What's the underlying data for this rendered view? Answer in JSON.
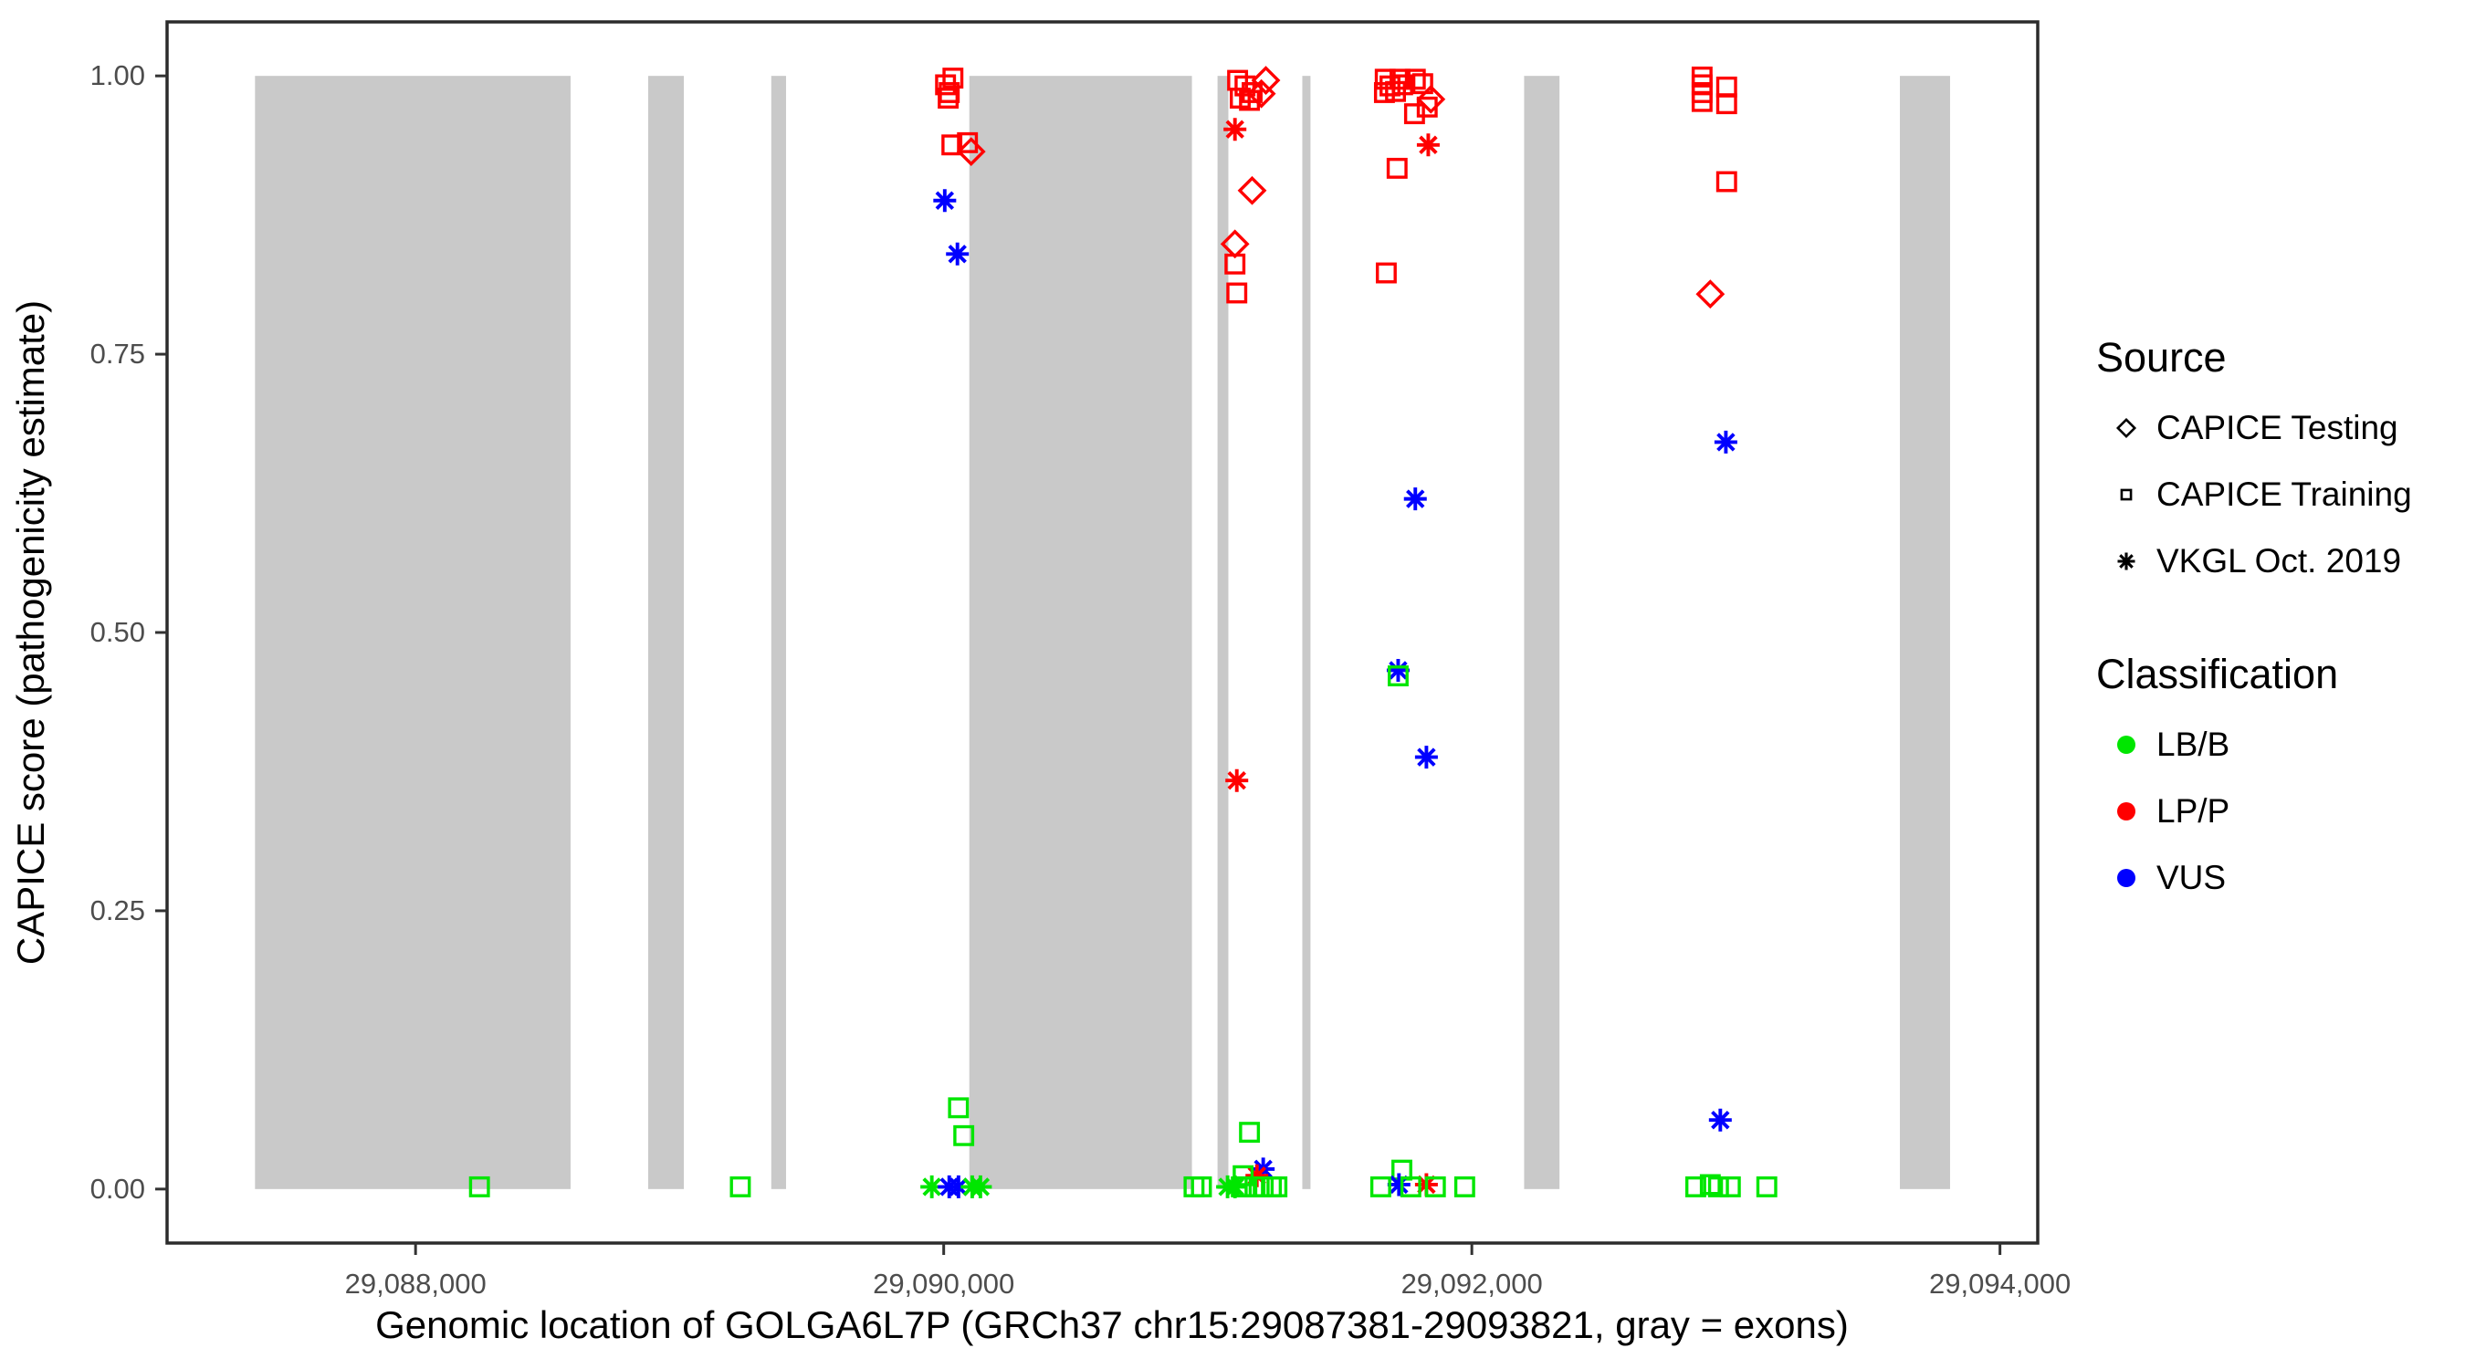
{
  "chart_data": {
    "type": "scatter",
    "title": "",
    "xlabel": "Genomic location of GOLGA6L7P (GRCh37 chr15:29087381-29093821, gray = exons)",
    "ylabel": "CAPICE score (pathogenicity estimate)",
    "xlim": [
      29087059,
      29094143
    ],
    "ylim": [
      -0.0485,
      1.0485
    ],
    "grid": false,
    "x_ticks": [
      {
        "value": 29088000,
        "label": "29,088,000"
      },
      {
        "value": 29090000,
        "label": "29,090,000"
      },
      {
        "value": 29092000,
        "label": "29,092,000"
      },
      {
        "value": 29094000,
        "label": "29,094,000"
      }
    ],
    "y_ticks": [
      {
        "value": 0.0,
        "label": "0.00"
      },
      {
        "value": 0.25,
        "label": "0.25"
      },
      {
        "value": 0.5,
        "label": "0.50"
      },
      {
        "value": 0.75,
        "label": "0.75"
      },
      {
        "value": 1.0,
        "label": "1.00"
      }
    ],
    "exons_bp": [
      [
        29087392,
        29088587
      ],
      [
        29088881,
        29089016
      ],
      [
        29089347,
        29089403
      ],
      [
        29090097,
        29090940
      ],
      [
        29091037,
        29091078
      ],
      [
        29091358,
        29091389
      ],
      [
        29092198,
        29092332
      ],
      [
        29093621,
        29093811
      ]
    ],
    "point_schema": [
      "bp",
      "score",
      "source",
      "classification"
    ],
    "points": [
      [
        29088242,
        0.002,
        "training",
        "LB/B"
      ],
      [
        29089230,
        0.002,
        "training",
        "LB/B"
      ],
      [
        29090035,
        0.998,
        "training",
        "LP/P"
      ],
      [
        29090007,
        0.992,
        "training",
        "LP/P"
      ],
      [
        29090021,
        0.985,
        "training",
        "LP/P"
      ],
      [
        29090017,
        0.98,
        "training",
        "LP/P"
      ],
      [
        29090031,
        0.938,
        "training",
        "LP/P"
      ],
      [
        29090090,
        0.94,
        "training",
        "LP/P"
      ],
      [
        29090104,
        0.932,
        "testing",
        "LP/P"
      ],
      [
        29090004,
        0.888,
        "vkgl",
        "VUS"
      ],
      [
        29090052,
        0.84,
        "vkgl",
        "VUS"
      ],
      [
        29090056,
        0.073,
        "training",
        "LB/B"
      ],
      [
        29090076,
        0.048,
        "training",
        "LB/B"
      ],
      [
        29089955,
        0.002,
        "vkgl",
        "LB/B"
      ],
      [
        29090021,
        0.002,
        "vkgl",
        "VUS"
      ],
      [
        29090056,
        0.002,
        "vkgl",
        "VUS"
      ],
      [
        29090108,
        0.002,
        "vkgl",
        "LB/B"
      ],
      [
        29090139,
        0.002,
        "vkgl",
        "LB/B"
      ],
      [
        29091113,
        0.996,
        "training",
        "LP/P"
      ],
      [
        29091141,
        0.991,
        "training",
        "LP/P"
      ],
      [
        29091168,
        0.985,
        "training",
        "LP/P"
      ],
      [
        29091123,
        0.98,
        "training",
        "LP/P"
      ],
      [
        29091158,
        0.978,
        "training",
        "LP/P"
      ],
      [
        29091220,
        0.996,
        "testing",
        "LP/P"
      ],
      [
        29091203,
        0.984,
        "testing",
        "LP/P"
      ],
      [
        29091103,
        0.952,
        "vkgl",
        "LP/P"
      ],
      [
        29091168,
        0.897,
        "testing",
        "LP/P"
      ],
      [
        29091103,
        0.849,
        "testing",
        "LP/P"
      ],
      [
        29091103,
        0.831,
        "training",
        "LP/P"
      ],
      [
        29091110,
        0.805,
        "training",
        "LP/P"
      ],
      [
        29091110,
        0.367,
        "vkgl",
        "LP/P"
      ],
      [
        29091158,
        0.051,
        "training",
        "LB/B"
      ],
      [
        29091210,
        0.018,
        "vkgl",
        "VUS"
      ],
      [
        29091186,
        0.012,
        "vkgl",
        "LP/P"
      ],
      [
        29091134,
        0.012,
        "training",
        "LB/B"
      ],
      [
        29090948,
        0.002,
        "training",
        "LB/B"
      ],
      [
        29090976,
        0.002,
        "training",
        "LB/B"
      ],
      [
        29091075,
        0.002,
        "vkgl",
        "LB/B"
      ],
      [
        29091103,
        0.002,
        "vkgl",
        "LB/B"
      ],
      [
        29091127,
        0.002,
        "training",
        "LB/B"
      ],
      [
        29091148,
        0.002,
        "training",
        "LB/B"
      ],
      [
        29091179,
        0.002,
        "training",
        "LB/B"
      ],
      [
        29091210,
        0.002,
        "training",
        "LB/B"
      ],
      [
        29091241,
        0.002,
        "training",
        "LB/B"
      ],
      [
        29091262,
        0.002,
        "training",
        "LB/B"
      ],
      [
        29091672,
        0.997,
        "training",
        "LP/P"
      ],
      [
        29091690,
        0.991,
        "training",
        "LP/P"
      ],
      [
        29091711,
        0.986,
        "training",
        "LP/P"
      ],
      [
        29091669,
        0.985,
        "training",
        "LP/P"
      ],
      [
        29091728,
        0.997,
        "training",
        "LP/P"
      ],
      [
        29091738,
        0.992,
        "training",
        "LP/P"
      ],
      [
        29091786,
        0.997,
        "training",
        "LP/P"
      ],
      [
        29091814,
        0.993,
        "training",
        "LP/P"
      ],
      [
        29091845,
        0.979,
        "testing",
        "LP/P"
      ],
      [
        29091831,
        0.972,
        "training",
        "LP/P"
      ],
      [
        29091783,
        0.966,
        "training",
        "LP/P"
      ],
      [
        29091835,
        0.938,
        "vkgl",
        "LP/P"
      ],
      [
        29091717,
        0.917,
        "training",
        "LP/P"
      ],
      [
        29091676,
        0.823,
        "training",
        "LP/P"
      ],
      [
        29091786,
        0.62,
        "vkgl",
        "VUS"
      ],
      [
        29091721,
        0.466,
        "vkgl",
        "VUS"
      ],
      [
        29091721,
        0.461,
        "training",
        "LB/B"
      ],
      [
        29091828,
        0.388,
        "vkgl",
        "VUS"
      ],
      [
        29091735,
        0.017,
        "training",
        "LB/B"
      ],
      [
        29091724,
        0.004,
        "vkgl",
        "VUS"
      ],
      [
        29091828,
        0.004,
        "vkgl",
        "LP/P"
      ],
      [
        29091655,
        0.002,
        "training",
        "LB/B"
      ],
      [
        29091769,
        0.002,
        "training",
        "LB/B"
      ],
      [
        29091862,
        0.002,
        "training",
        "LB/B"
      ],
      [
        29091973,
        0.002,
        "training",
        "LB/B"
      ],
      [
        29092872,
        0.999,
        "training",
        "LP/P"
      ],
      [
        29092872,
        0.992,
        "training",
        "LP/P"
      ],
      [
        29092872,
        0.985,
        "training",
        "LP/P"
      ],
      [
        29092872,
        0.977,
        "training",
        "LP/P"
      ],
      [
        29092965,
        0.99,
        "training",
        "LP/P"
      ],
      [
        29092965,
        0.975,
        "training",
        "LP/P"
      ],
      [
        29092965,
        0.905,
        "training",
        "LP/P"
      ],
      [
        29092903,
        0.804,
        "testing",
        "LP/P"
      ],
      [
        29092962,
        0.671,
        "vkgl",
        "VUS"
      ],
      [
        29092941,
        0.062,
        "vkgl",
        "VUS"
      ],
      [
        29092848,
        0.002,
        "training",
        "LB/B"
      ],
      [
        29092903,
        0.004,
        "training",
        "LB/B"
      ],
      [
        29092934,
        0.002,
        "training",
        "LB/B"
      ],
      [
        29092979,
        0.002,
        "training",
        "LB/B"
      ],
      [
        29093117,
        0.002,
        "training",
        "LB/B"
      ]
    ]
  },
  "legend": {
    "source": {
      "title": "Source",
      "items": [
        {
          "label": "CAPICE Testing",
          "source_key": "testing",
          "marker": "diamond"
        },
        {
          "label": "CAPICE Training",
          "source_key": "training",
          "marker": "square"
        },
        {
          "label": "VKGL Oct. 2019",
          "source_key": "vkgl",
          "marker": "asterisk"
        }
      ]
    },
    "classification": {
      "title": "Classification",
      "items": [
        {
          "label": "LB/B",
          "class_key": "LB/B",
          "marker": "dot"
        },
        {
          "label": "LP/P",
          "class_key": "LP/P",
          "marker": "dot"
        },
        {
          "label": "VUS",
          "class_key": "VUS",
          "marker": "dot"
        }
      ]
    }
  },
  "colors": {
    "LB/B": "#00e600",
    "LP/P": "#ff0000",
    "VUS": "#0000ff",
    "exon": "#c9c9c9",
    "panel_border": "#2b2b2b",
    "tick": "#333333",
    "tick_label": "#4d4d4d",
    "background": "#ffffff"
  },
  "marker_by_source": {
    "testing": "diamond",
    "training": "square",
    "vkgl": "asterisk"
  }
}
